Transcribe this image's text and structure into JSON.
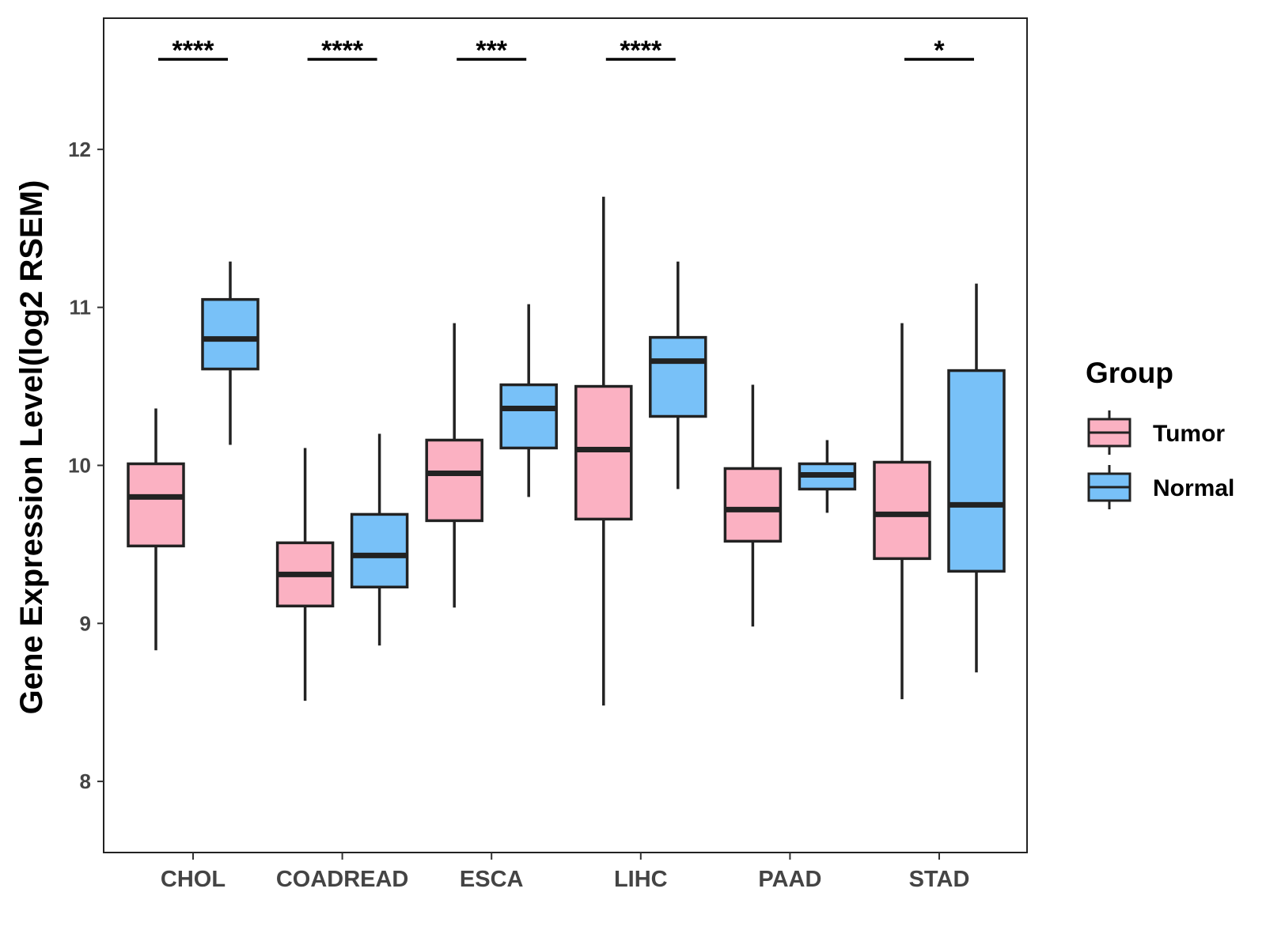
{
  "chart_data": {
    "type": "boxplot",
    "ylabel": "Gene Expression Level(log2 RSEM)",
    "xlabel": "",
    "ylim": [
      7.55,
      12.83
    ],
    "yticks": [
      8,
      9,
      10,
      11,
      12
    ],
    "categories": [
      "CHOL",
      "COADREAD",
      "ESCA",
      "LIHC",
      "PAAD",
      "STAD"
    ],
    "legend": {
      "title": "Group",
      "position": "right"
    },
    "grid": false,
    "series": [
      {
        "name": "Tumor",
        "color": "#FBB1C2",
        "boxes": [
          {
            "min": 8.83,
            "q1": 9.49,
            "median": 9.8,
            "q3": 10.01,
            "max": 10.36
          },
          {
            "min": 8.51,
            "q1": 9.11,
            "median": 9.31,
            "q3": 9.51,
            "max": 10.11
          },
          {
            "min": 9.1,
            "q1": 9.65,
            "median": 9.95,
            "q3": 10.16,
            "max": 10.9
          },
          {
            "min": 8.48,
            "q1": 9.66,
            "median": 10.1,
            "q3": 10.5,
            "max": 11.7
          },
          {
            "min": 8.98,
            "q1": 9.52,
            "median": 9.72,
            "q3": 9.98,
            "max": 10.51
          },
          {
            "min": 8.52,
            "q1": 9.41,
            "median": 9.69,
            "q3": 10.02,
            "max": 10.9
          }
        ]
      },
      {
        "name": "Normal",
        "color": "#78C1F8",
        "boxes": [
          {
            "min": 10.13,
            "q1": 10.61,
            "median": 10.8,
            "q3": 11.05,
            "max": 11.29
          },
          {
            "min": 8.86,
            "q1": 9.23,
            "median": 9.43,
            "q3": 9.69,
            "max": 10.2
          },
          {
            "min": 9.8,
            "q1": 10.11,
            "median": 10.36,
            "q3": 10.51,
            "max": 11.02
          },
          {
            "min": 9.85,
            "q1": 10.31,
            "median": 10.66,
            "q3": 10.81,
            "max": 11.29
          },
          {
            "min": 9.7,
            "q1": 9.85,
            "median": 9.94,
            "q3": 10.01,
            "max": 10.16
          },
          {
            "min": 8.69,
            "q1": 9.33,
            "median": 9.75,
            "q3": 10.6,
            "max": 11.15
          }
        ]
      }
    ],
    "significance": [
      "****",
      "****",
      "***",
      "****",
      "",
      "*"
    ]
  }
}
